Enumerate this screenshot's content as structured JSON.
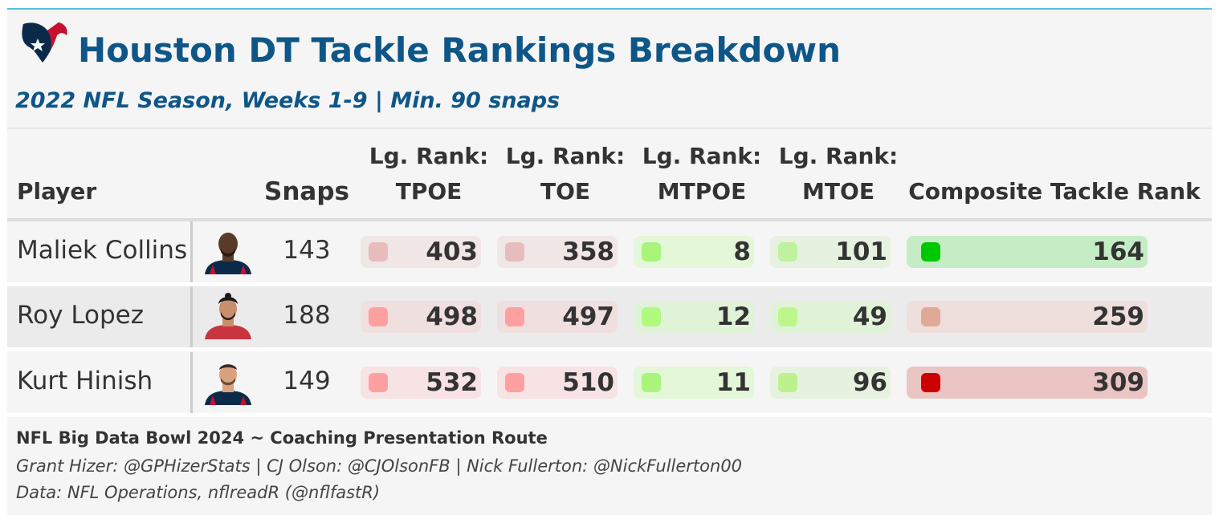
{
  "header": {
    "title": "Houston DT Tackle Rankings Breakdown",
    "subtitle": "2022 NFL Season, Weeks 1-9 | Min. 90 snaps",
    "logo_icon": "texans-logo-icon"
  },
  "columns": {
    "player": "Player",
    "snaps": "Snaps",
    "rank_prefix": "Lg. Rank:",
    "tpoe": "TPOE",
    "toe": "TOE",
    "mtpoe": "MTPOE",
    "mtoe": "MTOE",
    "composite": "Composite Tackle Rank"
  },
  "rows": [
    {
      "name": "Maliek Collins",
      "snaps": "143",
      "tpoe": "403",
      "toe": "358",
      "mtpoe": "8",
      "mtoe": "101",
      "composite": "164",
      "colors": {
        "tpoe": [
          "#f0e6e6",
          "#e6bcbc"
        ],
        "toe": [
          "#f0e6e6",
          "#e6bcbc"
        ],
        "mtpoe": [
          "#e4f7d9",
          "#a9f57c"
        ],
        "mtoe": [
          "#e6f2df",
          "#bff19e"
        ],
        "composite": [
          "#c5edc5",
          "#00c800"
        ]
      }
    },
    {
      "name": "Roy Lopez",
      "snaps": "188",
      "tpoe": "498",
      "toe": "497",
      "mtpoe": "12",
      "mtoe": "49",
      "composite": "259",
      "colors": {
        "tpoe": [
          "#f0dfdf",
          "#ffa0a0"
        ],
        "toe": [
          "#f0dfdf",
          "#ffa0a0"
        ],
        "mtpoe": [
          "#e0f2d8",
          "#b0fa7e"
        ],
        "mtoe": [
          "#e0f2d8",
          "#bdf78c"
        ],
        "composite": [
          "#eedfdc",
          "#e0a997"
        ]
      }
    },
    {
      "name": "Kurt Hinish",
      "snaps": "149",
      "tpoe": "532",
      "toe": "510",
      "mtpoe": "11",
      "mtoe": "96",
      "composite": "309",
      "colors": {
        "tpoe": [
          "#f7e3e3",
          "#ffa0a0"
        ],
        "toe": [
          "#f7e3e3",
          "#ffa0a0"
        ],
        "mtpoe": [
          "#e4f7d9",
          "#a9f57c"
        ],
        "mtoe": [
          "#e6f2df",
          "#bdf18e"
        ],
        "composite": [
          "#ebc4c4",
          "#cc0000"
        ]
      }
    }
  ],
  "footer": {
    "line1": "NFL Big Data Bowl 2024 ~ Coaching Presentation Route",
    "line2": "Grant Hizer: @GPHizerStats | CJ Olson: @CJOlsonFB | Nick Fullerton: @NickFullerton00",
    "line3": "Data: NFL Operations, nflreadR (@nflfastR)"
  }
}
